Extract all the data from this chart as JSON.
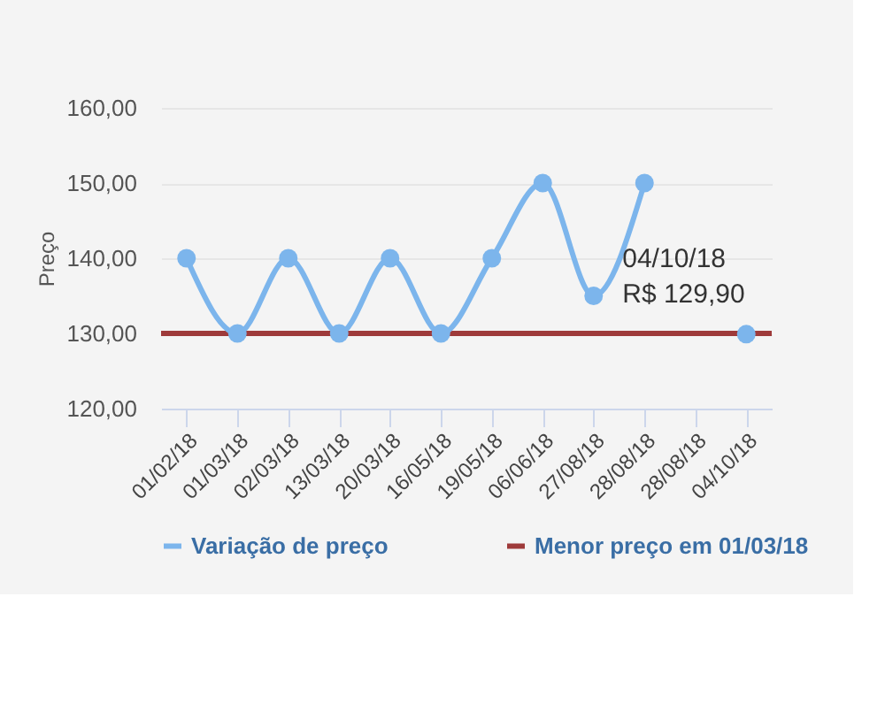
{
  "chart_data": {
    "type": "line",
    "ylabel": "Preço",
    "categories": [
      "01/02/18",
      "01/03/18",
      "02/03/18",
      "13/03/18",
      "20/03/18",
      "16/05/18",
      "19/05/18",
      "06/06/18",
      "27/08/18",
      "28/08/18",
      "28/08/18",
      "04/10/18"
    ],
    "series": [
      {
        "name": "Variação de preço",
        "color": "#7cb5ec",
        "values": [
          140,
          130,
          140,
          130,
          140,
          130,
          140,
          150,
          135,
          150,
          null,
          129.9
        ]
      }
    ],
    "ref_lines": [
      {
        "axis": "y",
        "value": 130,
        "label": "Menor preço em 01/03/18",
        "color": "#9e3a3a"
      }
    ],
    "ylim": [
      120,
      160
    ],
    "yticks": [
      {
        "value": 120,
        "label": "120,00"
      },
      {
        "value": 130,
        "label": "130,00"
      },
      {
        "value": 140,
        "label": "140,00"
      },
      {
        "value": 150,
        "label": "150,00"
      },
      {
        "value": 160,
        "label": "160,00"
      }
    ],
    "annotations": [
      {
        "text": "04/10/18\nR$ 129,90",
        "x": "04/10/18",
        "y": 129.9
      }
    ],
    "grid": "y",
    "legend": "bottom",
    "marker": "circle",
    "line_style": "solid"
  }
}
